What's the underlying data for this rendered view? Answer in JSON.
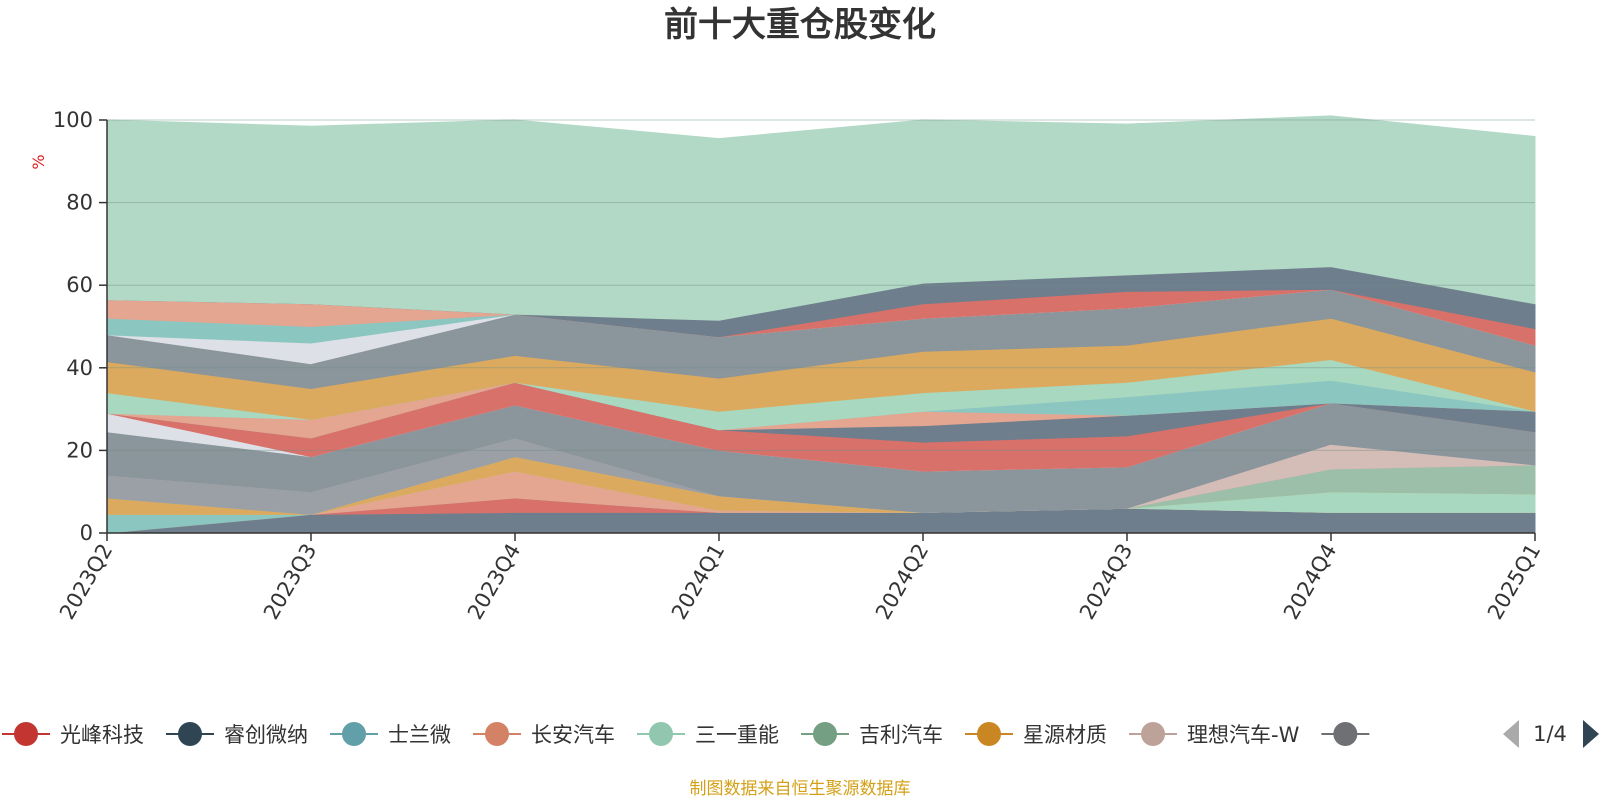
{
  "chart_data": {
    "type": "area",
    "stacked": true,
    "title": "前十大重仓股变化",
    "ylabel": "%",
    "ylim": [
      0,
      100
    ],
    "yticks": [
      0,
      20,
      40,
      60,
      80,
      100
    ],
    "grid": true,
    "legend": "bottom",
    "legend_page": "1/4",
    "footer": "制图数据来自恒生聚源数据库",
    "x": [
      "2023Q2",
      "2023Q3",
      "2023Q4",
      "2024Q1",
      "2024Q2",
      "2024Q3",
      "2024Q4",
      "2025Q1"
    ],
    "series": [
      {
        "name": "",
        "color": "#6e7e8c",
        "values": [
          0,
          4.5,
          5,
          5,
          5,
          6,
          5,
          5
        ]
      },
      {
        "name": "光峰科技",
        "color": "#d9716b",
        "values": [
          0,
          0,
          3.5,
          0,
          0,
          0,
          0,
          0
        ]
      },
      {
        "name": "",
        "color": "#8bc6c0",
        "values": [
          4.5,
          0,
          0,
          0,
          0,
          0,
          0,
          0
        ]
      },
      {
        "name": "长安汽车",
        "color": "#e4a591",
        "values": [
          0,
          0,
          6.5,
          0.5,
          0,
          0,
          0,
          0
        ]
      },
      {
        "name": "三一重能",
        "color": "#a8d8c0",
        "values": [
          0,
          0,
          0,
          0,
          0,
          0,
          5,
          4.5
        ]
      },
      {
        "name": "星源材质",
        "color": "#dcaa5e",
        "values": [
          4,
          0,
          3.5,
          3.5,
          0,
          0,
          0,
          0
        ]
      },
      {
        "name": "吉利汽车",
        "color": "#9bbfa8",
        "values": [
          0,
          0,
          0,
          0,
          0,
          0,
          5.5,
          7
        ]
      },
      {
        "name": "",
        "color": "#9aa0a6",
        "values": [
          5.5,
          5.5,
          4.5,
          0,
          0,
          0,
          0,
          0
        ]
      },
      {
        "name": "理想汽车-W",
        "color": "#d4bdb6",
        "values": [
          0,
          0,
          0,
          0,
          0,
          0,
          6,
          0
        ]
      },
      {
        "name": "",
        "color": "#8a959c",
        "values": [
          10.5,
          8.5,
          8,
          11,
          10,
          10,
          10,
          8
        ]
      },
      {
        "name": "",
        "color": "#dde0e6",
        "values": [
          4.5,
          0,
          0,
          0,
          0,
          0,
          0,
          0
        ]
      },
      {
        "name": "",
        "color": "#d9716b",
        "values": [
          0,
          4.5,
          5.5,
          5,
          7,
          7.5,
          0,
          0
        ]
      },
      {
        "name": "",
        "color": "#6e7e8c",
        "values": [
          0,
          0,
          0,
          0,
          4,
          5,
          0,
          5
        ]
      },
      {
        "name": "",
        "color": "#e4a591",
        "values": [
          0,
          4.5,
          0,
          0,
          3.5,
          0,
          0,
          0
        ]
      },
      {
        "name": "士兰微",
        "color": "#8bc6c0",
        "values": [
          0,
          0,
          0,
          0,
          0,
          4.5,
          5.5,
          0
        ]
      },
      {
        "name": "",
        "color": "#a8d8c0",
        "values": [
          5,
          0,
          0,
          4.5,
          4.5,
          3.5,
          5,
          0
        ]
      },
      {
        "name": "",
        "color": "#dcaa5e",
        "values": [
          7.5,
          7.5,
          6.5,
          8,
          10,
          9,
          10,
          9.5
        ]
      },
      {
        "name": "",
        "color": "#8a959c",
        "values": [
          6.5,
          6,
          10,
          10,
          8,
          9,
          7,
          6.5
        ]
      },
      {
        "name": "",
        "color": "#dde0e6",
        "values": [
          0,
          5,
          0,
          0,
          0,
          0,
          0,
          0
        ]
      },
      {
        "name": "",
        "color": "#8bc6c0",
        "values": [
          4,
          4,
          0,
          0,
          0,
          0,
          0,
          0
        ]
      },
      {
        "name": "",
        "color": "#e4a591",
        "values": [
          4.5,
          5.5,
          0,
          0,
          0,
          0,
          0,
          0
        ]
      },
      {
        "name": "",
        "color": "#d9716b",
        "values": [
          0,
          0,
          0,
          0,
          3.5,
          4,
          0,
          4
        ]
      },
      {
        "name": "睿创微纳",
        "color": "#6e7e8c",
        "values": [
          0,
          0,
          0,
          4,
          5,
          4,
          5.5,
          6
        ]
      },
      {
        "name": "",
        "color": "#b2d8c6",
        "values": [
          43.5,
          43,
          47,
          44,
          39.5,
          36.5,
          36.5,
          40.5
        ]
      }
    ],
    "legend_items": [
      {
        "name": "光峰科技",
        "color": "#c23531"
      },
      {
        "name": "睿创微纳",
        "color": "#2f4554"
      },
      {
        "name": "士兰微",
        "color": "#61a0a8"
      },
      {
        "name": "长安汽车",
        "color": "#d48265"
      },
      {
        "name": "三一重能",
        "color": "#91c7ae"
      },
      {
        "name": "吉利汽车",
        "color": "#749f83"
      },
      {
        "name": "星源材质",
        "color": "#ca8622"
      },
      {
        "name": "理想汽车-W",
        "color": "#bda29a"
      },
      {
        "name": "",
        "color": "#6e7074"
      }
    ],
    "pager_colors": {
      "prev": "#aaaaaa",
      "next": "#2f4554"
    }
  }
}
